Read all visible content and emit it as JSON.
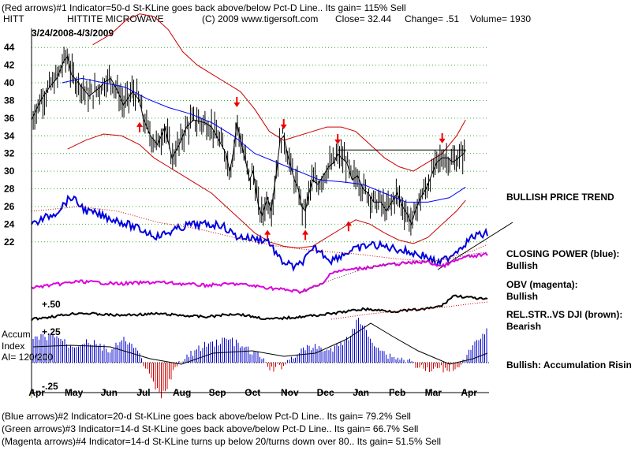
{
  "header": {
    "line1": "(Red arrows)#1 Indicator=50-d St-KLine goes back above/below Pct-D Line.. Its gain= 115% Sell",
    "symbol": "HITT",
    "company": "HITTITE MICROWAVE",
    "copyright": "(C) 2009 www.tigersoft.com",
    "close": "Close=  32.44",
    "change": "Change= .51",
    "volume": "Volume= 1930",
    "date_range": "3/24/2008-4/3/2009"
  },
  "right_labels": {
    "trend": "BULLISH PRICE TREND",
    "closing_power_title": "CLOSING POWER (blue):",
    "closing_power_value": "Bullish",
    "obv_title": "OBV (magenta):",
    "obv_value": "Bullish",
    "relstr_title": "REL.STR..VS DJI (brown):",
    "relstr_value": "Bearish",
    "accum_note": "Bullish: Accumulation Rising"
  },
  "left_labels": {
    "relstr_level": "+.50",
    "accum_top": "+.25",
    "accum_bottom": "-.25",
    "accum_title": "Accum",
    "accum_index": "Index",
    "ai": "AI= 120/200"
  },
  "footer": {
    "line2": "(Blue arrows)#2 Indicator=20-d St-KLine goes back above/below Pct-D Line.. Its gain= 79.2% Sell",
    "line3": "(Green arrows)#3 Indicator=14-d St-KLine goes back above/below Pct-D Line.. Its gain= 66.7% Sell",
    "line4": "(Magenta arrows)#4 Indicator=14-d St-KLine turns up below 20/turns down over 80.. Its gain= 51.5% Sell"
  },
  "colors": {
    "price": "#000000",
    "bands": "#cc0000",
    "moving_average": "#0000ff",
    "closing_power": "#0000dd",
    "obv": "#dd00dd",
    "rel_strength": "#000000",
    "accum_positive": "#0000cc",
    "accum_negative": "#cc0000",
    "gridline": "#33aa33",
    "arrow": "#ee0000"
  },
  "chart_data": {
    "type": "line",
    "ylim": [
      21,
      45
    ],
    "yticks": [
      22,
      24,
      26,
      28,
      30,
      32,
      34,
      36,
      38,
      40,
      42,
      44
    ],
    "xlim": [
      0,
      12.7
    ],
    "months": [
      "Apr",
      "May",
      "Jun",
      "Jul",
      "Aug",
      "Sep",
      "Oct",
      "Nov",
      "Dec",
      "Jan",
      "Feb",
      "Mar",
      "Apr"
    ],
    "price_close": [
      [
        0.0,
        35.8
      ],
      [
        0.25,
        38.0
      ],
      [
        0.5,
        39.5
      ],
      [
        0.7,
        40.5
      ],
      [
        0.9,
        42.5
      ],
      [
        1.0,
        43.0
      ],
      [
        1.1,
        41.0
      ],
      [
        1.3,
        40.0
      ],
      [
        1.6,
        38.5
      ],
      [
        1.9,
        39.5
      ],
      [
        2.0,
        40.0
      ],
      [
        2.2,
        40.5
      ],
      [
        2.4,
        39.0
      ],
      [
        2.55,
        37.5
      ],
      [
        2.8,
        39.0
      ],
      [
        3.0,
        38.0
      ],
      [
        3.1,
        36.0
      ],
      [
        3.3,
        34.0
      ],
      [
        3.5,
        33.0
      ],
      [
        3.7,
        35.0
      ],
      [
        3.9,
        31.5
      ],
      [
        4.1,
        33.0
      ],
      [
        4.3,
        35.0
      ],
      [
        4.5,
        35.8
      ],
      [
        4.8,
        35.5
      ],
      [
        5.0,
        35.0
      ],
      [
        5.2,
        33.5
      ],
      [
        5.4,
        32.0
      ],
      [
        5.5,
        30.0
      ],
      [
        5.6,
        32.0
      ],
      [
        5.7,
        35.5
      ],
      [
        5.8,
        33.5
      ],
      [
        5.95,
        31.0
      ],
      [
        6.05,
        29.0
      ],
      [
        6.15,
        30.0
      ],
      [
        6.3,
        26.0
      ],
      [
        6.4,
        25.0
      ],
      [
        6.55,
        27.0
      ],
      [
        6.65,
        25.5
      ],
      [
        6.8,
        30.0
      ],
      [
        6.9,
        33.5
      ],
      [
        7.0,
        34.0
      ],
      [
        7.1,
        32.0
      ],
      [
        7.2,
        30.5
      ],
      [
        7.3,
        29.0
      ],
      [
        7.4,
        28.0
      ],
      [
        7.5,
        26.0
      ],
      [
        7.6,
        25.5
      ],
      [
        7.7,
        27.5
      ],
      [
        7.8,
        29.0
      ],
      [
        7.95,
        28.5
      ],
      [
        8.1,
        29.5
      ],
      [
        8.25,
        30.5
      ],
      [
        8.4,
        31.0
      ],
      [
        8.5,
        32.0
      ],
      [
        8.6,
        31.5
      ],
      [
        8.75,
        31.0
      ],
      [
        8.9,
        29.0
      ],
      [
        9.05,
        29.5
      ],
      [
        9.2,
        28.0
      ],
      [
        9.35,
        27.5
      ],
      [
        9.5,
        26.5
      ],
      [
        9.7,
        26.5
      ],
      [
        9.85,
        25.5
      ],
      [
        10.0,
        26.5
      ],
      [
        10.15,
        27.5
      ],
      [
        10.3,
        26.0
      ],
      [
        10.45,
        25.0
      ],
      [
        10.55,
        24.0
      ],
      [
        10.65,
        25.5
      ],
      [
        10.8,
        27.0
      ],
      [
        10.95,
        28.0
      ],
      [
        11.1,
        29.5
      ],
      [
        11.25,
        31.0
      ],
      [
        11.4,
        31.5
      ],
      [
        11.55,
        31.5
      ],
      [
        11.7,
        31.0
      ],
      [
        11.85,
        31.5
      ],
      [
        12.0,
        32.0
      ],
      [
        12.05,
        32.44
      ]
    ],
    "moving_average": [
      [
        0.85,
        40.0
      ],
      [
        1.4,
        40.5
      ],
      [
        2.0,
        40.0
      ],
      [
        2.6,
        39.5
      ],
      [
        3.2,
        38.2
      ],
      [
        3.8,
        37.2
      ],
      [
        4.4,
        36.5
      ],
      [
        5.0,
        35.5
      ],
      [
        5.6,
        34.0
      ],
      [
        6.2,
        32.0
      ],
      [
        6.8,
        31.0
      ],
      [
        7.4,
        30.0
      ],
      [
        8.0,
        29.0
      ],
      [
        8.6,
        28.8
      ],
      [
        9.2,
        28.5
      ],
      [
        9.8,
        27.5
      ],
      [
        10.4,
        26.5
      ],
      [
        11.0,
        26.5
      ],
      [
        11.6,
        27.0
      ],
      [
        12.05,
        28.2
      ]
    ],
    "upper_band": [
      [
        1.7,
        44.3
      ],
      [
        2.2,
        45.5
      ],
      [
        2.6,
        47.0
      ],
      [
        3.0,
        47.8
      ],
      [
        3.4,
        47.5
      ],
      [
        3.8,
        46.0
      ],
      [
        4.2,
        43.5
      ],
      [
        4.6,
        42.0
      ],
      [
        5.0,
        41.0
      ],
      [
        5.4,
        40.0
      ],
      [
        5.8,
        39.0
      ],
      [
        6.2,
        37.0
      ],
      [
        6.6,
        34.5
      ],
      [
        7.0,
        33.5
      ],
      [
        7.4,
        34.0
      ],
      [
        7.8,
        34.5
      ],
      [
        8.2,
        35.0
      ],
      [
        8.6,
        35.0
      ],
      [
        9.0,
        34.5
      ],
      [
        9.4,
        33.0
      ],
      [
        9.8,
        31.5
      ],
      [
        10.2,
        30.5
      ],
      [
        10.6,
        30.0
      ],
      [
        11.0,
        31.0
      ],
      [
        11.4,
        32.0
      ],
      [
        11.8,
        34.0
      ],
      [
        12.05,
        35.8
      ]
    ],
    "lower_band": [
      [
        1.0,
        32.5
      ],
      [
        1.5,
        33.5
      ],
      [
        2.0,
        34.2
      ],
      [
        2.5,
        34.0
      ],
      [
        3.0,
        33.0
      ],
      [
        3.4,
        31.5
      ],
      [
        3.8,
        30.5
      ],
      [
        4.2,
        29.5
      ],
      [
        4.6,
        28.5
      ],
      [
        5.0,
        27.5
      ],
      [
        5.4,
        26.0
      ],
      [
        5.8,
        24.5
      ],
      [
        6.2,
        23.0
      ],
      [
        6.6,
        22.0
      ],
      [
        7.0,
        21.5
      ],
      [
        7.4,
        21.3
      ],
      [
        7.8,
        21.5
      ],
      [
        8.2,
        22.5
      ],
      [
        8.6,
        23.5
      ],
      [
        9.0,
        24.5
      ],
      [
        9.4,
        24.0
      ],
      [
        9.8,
        23.0
      ],
      [
        10.2,
        22.2
      ],
      [
        10.6,
        21.8
      ],
      [
        11.0,
        22.5
      ],
      [
        11.4,
        24.0
      ],
      [
        11.8,
        25.5
      ],
      [
        12.05,
        26.7
      ]
    ],
    "resistance_line": [
      [
        8.5,
        32.4
      ],
      [
        12.05,
        32.4
      ]
    ],
    "red_arrows": [
      {
        "x": 3.0,
        "dir": "up",
        "y": 35.2
      },
      {
        "x": 5.7,
        "dir": "down",
        "y": 37.6
      },
      {
        "x": 7.0,
        "dir": "down",
        "y": 35.1
      },
      {
        "x": 8.5,
        "dir": "down",
        "y": 33.4
      },
      {
        "x": 6.55,
        "dir": "up",
        "y": 23.0
      },
      {
        "x": 7.6,
        "dir": "up",
        "y": 23.0
      },
      {
        "x": 8.8,
        "dir": "up",
        "y": 24.0
      },
      {
        "x": 11.4,
        "dir": "down",
        "y": 33.5
      }
    ]
  }
}
